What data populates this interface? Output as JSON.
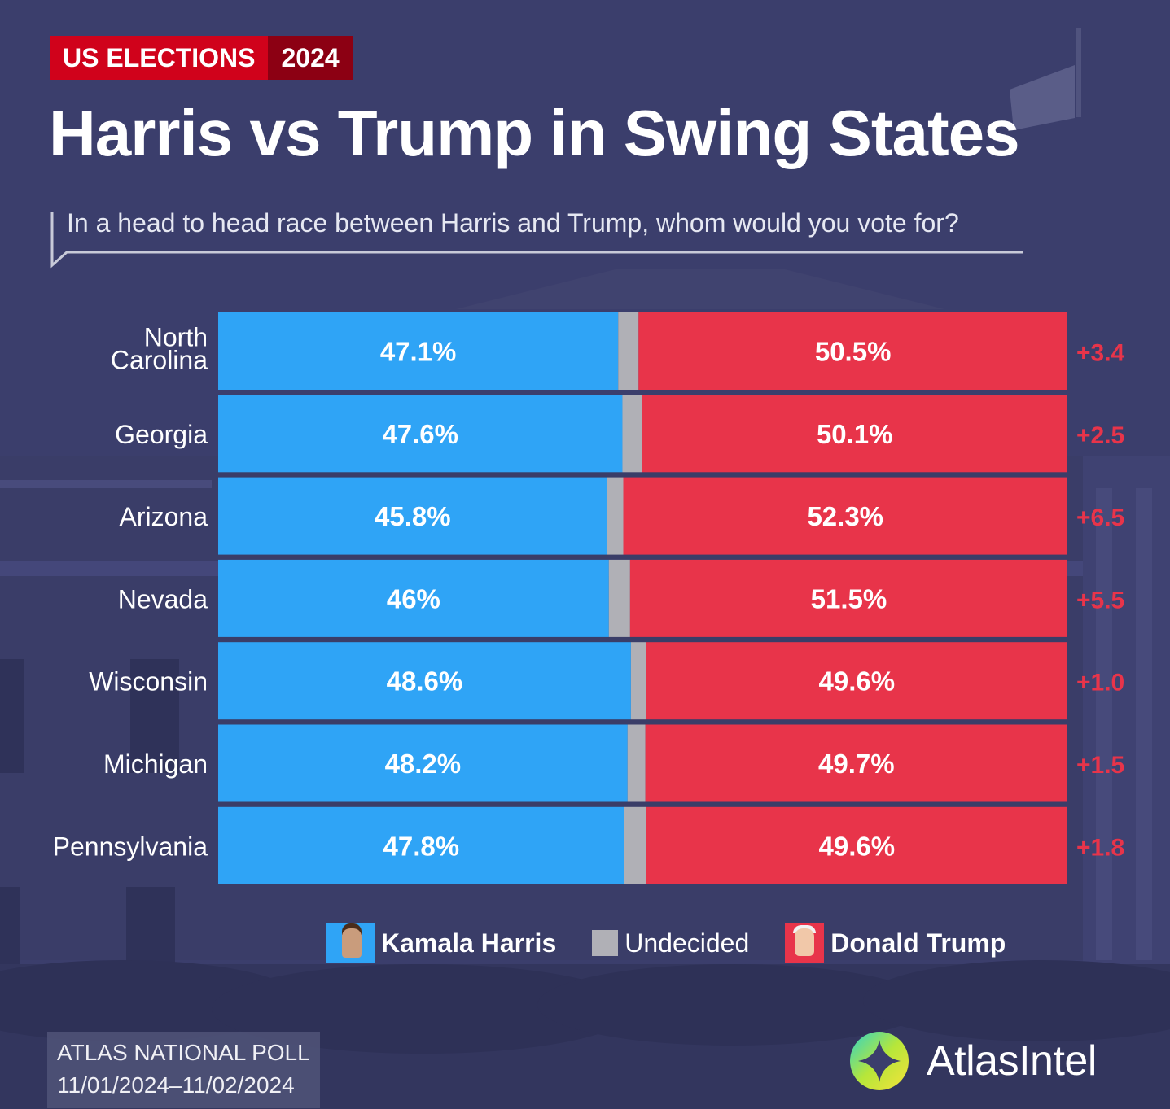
{
  "badge": {
    "label": "US ELECTIONS",
    "year": "2024"
  },
  "title": "Harris vs Trump in Swing States",
  "subtitle": "In a head to head race between Harris and Trump, whom would you vote for?",
  "colors": {
    "harris": "#2fa4f6",
    "trump": "#e8344a",
    "undecided": "#b0b0b6",
    "margin_text": "#e8344a",
    "background": "#3b3e6c"
  },
  "chart_data": {
    "type": "bar",
    "orientation": "horizontal-stacked",
    "categories": [
      "North Carolina",
      "Georgia",
      "Arizona",
      "Nevada",
      "Wisconsin",
      "Michigan",
      "Pennsylvania"
    ],
    "category_lines": [
      [
        "North",
        "Carolina"
      ],
      [
        "Georgia"
      ],
      [
        "Arizona"
      ],
      [
        "Nevada"
      ],
      [
        "Wisconsin"
      ],
      [
        "Michigan"
      ],
      [
        "Pennsylvania"
      ]
    ],
    "series": [
      {
        "name": "Kamala Harris",
        "values": [
          47.1,
          47.6,
          45.8,
          46.0,
          48.6,
          48.2,
          47.8
        ],
        "labels": [
          "47.1%",
          "47.6%",
          "45.8%",
          "46%",
          "48.6%",
          "48.2%",
          "47.8%"
        ]
      },
      {
        "name": "Undecided",
        "values": [
          2.4,
          2.3,
          1.9,
          2.5,
          1.8,
          2.1,
          2.6
        ]
      },
      {
        "name": "Donald Trump",
        "values": [
          50.5,
          50.1,
          52.3,
          51.5,
          49.6,
          49.7,
          49.6
        ],
        "labels": [
          "50.5%",
          "50.1%",
          "52.3%",
          "51.5%",
          "49.6%",
          "49.7%",
          "49.6%"
        ]
      }
    ],
    "margins": [
      "+3.4",
      "+2.5",
      "+6.5",
      "+5.5",
      "+1.0",
      "+1.5",
      "+1.8"
    ],
    "xlim": [
      0,
      100
    ],
    "legend_position": "bottom"
  },
  "legend": {
    "harris": "Kamala Harris",
    "undecided": "Undecided",
    "trump": "Donald Trump"
  },
  "footer": {
    "line1": "ATLAS NATIONAL POLL",
    "line2": "11/01/2024–11/02/2024"
  },
  "logo": {
    "name": "AtlasIntel",
    "icon": "atlas-compass-icon"
  }
}
